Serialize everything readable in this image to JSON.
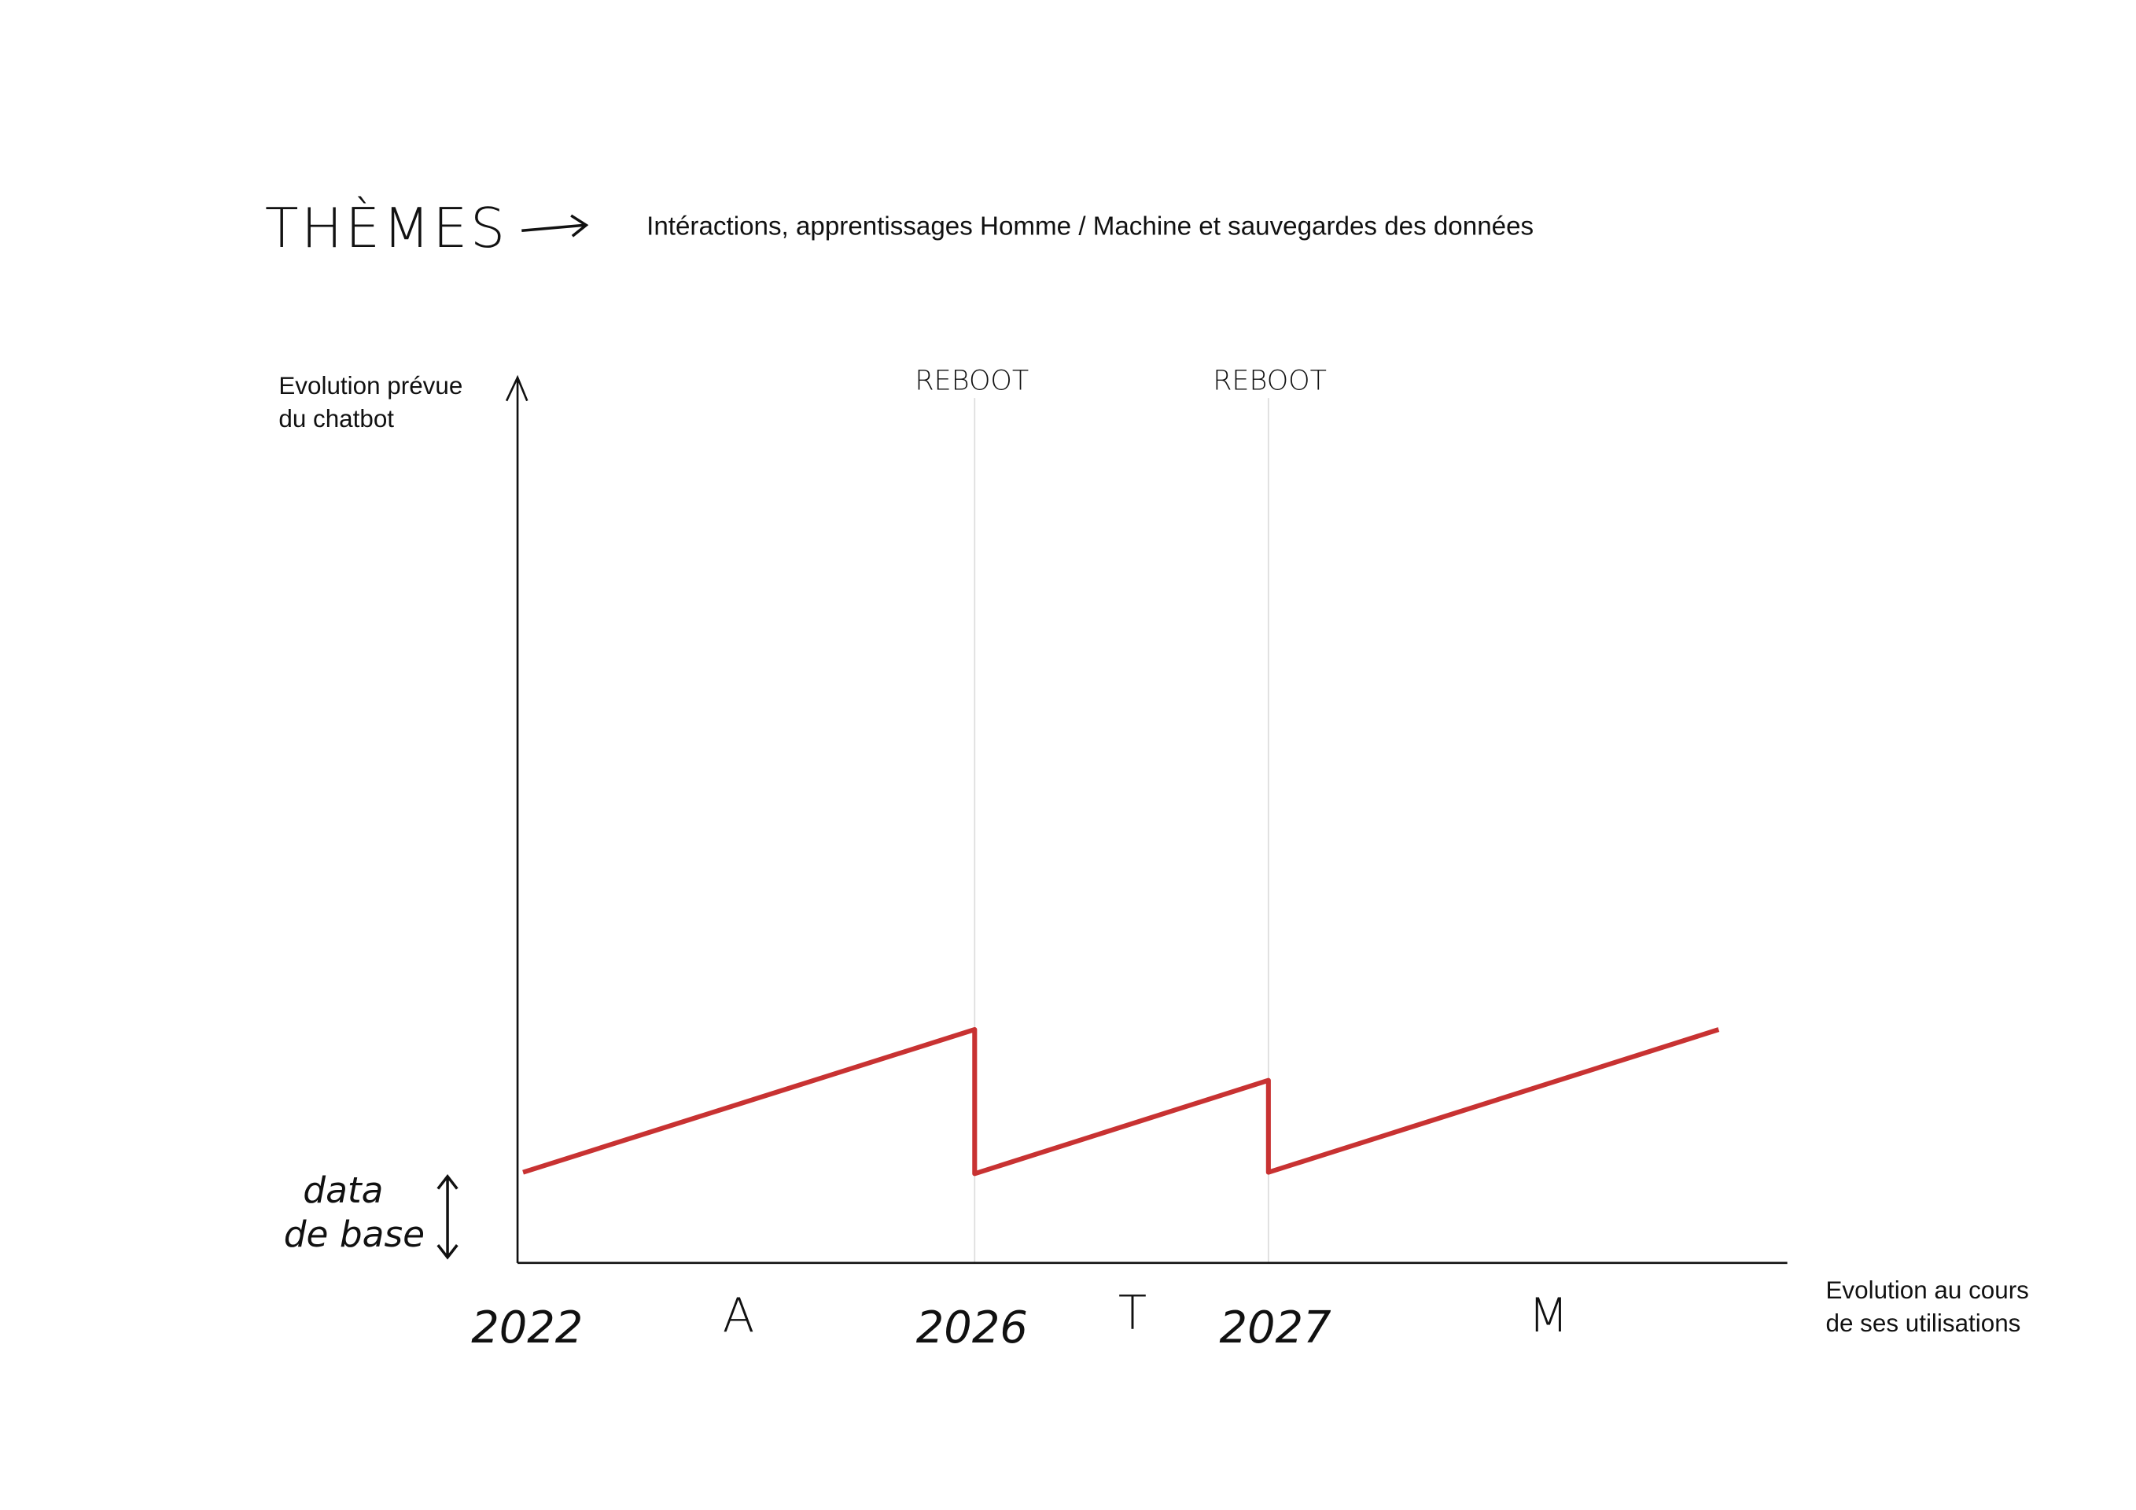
{
  "header": {
    "title": "THÈMES",
    "subtitle": "Intéractions, apprentissages Homme / Machine et sauvegardes des données"
  },
  "y_axis": {
    "label": [
      "Evolution prévue",
      "du chatbot"
    ],
    "baseline_label": [
      "data",
      "de base"
    ]
  },
  "x_axis": {
    "label": [
      "Evolution au cours",
      "de ses utilisations"
    ],
    "years": [
      "2022",
      "2026",
      "2027"
    ],
    "letters": [
      "A",
      "T",
      "M"
    ]
  },
  "markers": [
    "REBOOT",
    "REBOOT"
  ]
}
